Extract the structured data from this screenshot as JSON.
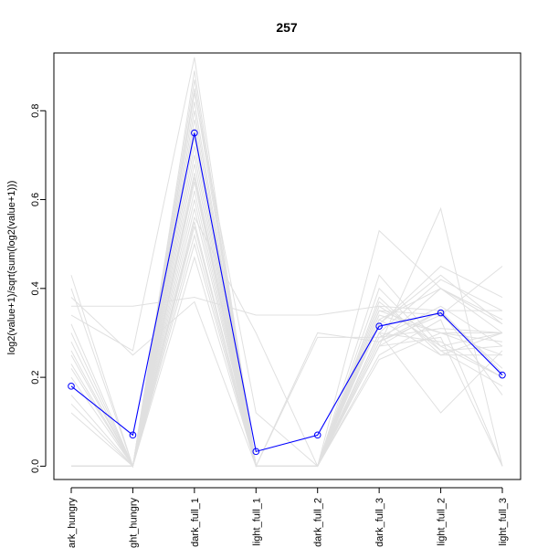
{
  "chart_data": {
    "type": "line",
    "title": "257",
    "xlabel": "",
    "ylabel": "log2(value+1)/sqrt(sum(log2(value+1)))",
    "categories": [
      "dark_hungry",
      "light_hungry",
      "dark_full_1",
      "light_full_1",
      "dark_full_2",
      "dark_full_3",
      "light_full_2",
      "light_full_3"
    ],
    "category_tick_labels": [
      "ark_hungry",
      "ght_hungry",
      "dark_full_1",
      "light_full_1",
      "dark_full_2",
      "dark_full_3",
      "light_full_2",
      "light_full_3"
    ],
    "ylim": [
      -0.03,
      0.93
    ],
    "yticks": [
      0.0,
      0.2,
      0.4,
      0.6,
      0.8
    ],
    "ytick_labels": [
      "0.0",
      "0.2",
      "0.4",
      "0.6",
      "0.8"
    ],
    "grid": false,
    "legend": "none",
    "series": [
      {
        "values": [
          0.18,
          0.07,
          0.75,
          0.033,
          0.07,
          0.315,
          0.345,
          0.205
        ],
        "color": "#0000ff",
        "markers": "open-circle",
        "highlight": true
      },
      {
        "values": [
          0.43,
          0.0,
          0.47,
          0.0,
          0.0,
          0.3,
          0.28,
          0.2
        ],
        "color": "#e0e0e0"
      },
      {
        "values": [
          0.4,
          0.0,
          0.55,
          0.0,
          0.0,
          0.27,
          0.35,
          0.16
        ],
        "color": "#e0e0e0"
      },
      {
        "values": [
          0.38,
          0.25,
          0.37,
          0.0,
          0.3,
          0.28,
          0.4,
          0.3
        ],
        "color": "#e0e0e0"
      },
      {
        "values": [
          0.36,
          0.36,
          0.38,
          0.34,
          0.34,
          0.36,
          0.35,
          0.35
        ],
        "color": "#e0e0e0"
      },
      {
        "values": [
          0.34,
          0.26,
          0.92,
          0.0,
          0.0,
          0.33,
          0.4,
          0.33
        ],
        "color": "#e0e0e0"
      },
      {
        "values": [
          0.32,
          0.0,
          0.89,
          0.0,
          0.0,
          0.3,
          0.42,
          0.35
        ],
        "color": "#e0e0e0"
      },
      {
        "values": [
          0.3,
          0.0,
          0.87,
          0.0,
          0.0,
          0.25,
          0.33,
          0.0
        ],
        "color": "#e0e0e0"
      },
      {
        "values": [
          0.28,
          0.0,
          0.85,
          0.0,
          0.0,
          0.32,
          0.45,
          0.38
        ],
        "color": "#e0e0e0"
      },
      {
        "values": [
          0.26,
          0.0,
          0.84,
          0.12,
          0.0,
          0.34,
          0.3,
          0.3
        ],
        "color": "#e0e0e0"
      },
      {
        "values": [
          0.25,
          0.0,
          0.82,
          0.0,
          0.0,
          0.27,
          0.58,
          0.0
        ],
        "color": "#e0e0e0"
      },
      {
        "values": [
          0.23,
          0.0,
          0.8,
          0.0,
          0.0,
          0.53,
          0.4,
          0.32
        ],
        "color": "#e0e0e0"
      },
      {
        "values": [
          0.22,
          0.0,
          0.78,
          0.0,
          0.0,
          0.35,
          0.3,
          0.28
        ],
        "color": "#e0e0e0"
      },
      {
        "values": [
          0.2,
          0.0,
          0.74,
          0.0,
          0.0,
          0.28,
          0.34,
          0.45
        ],
        "color": "#e0e0e0"
      },
      {
        "values": [
          0.16,
          0.0,
          0.72,
          0.0,
          0.0,
          0.24,
          0.3,
          0.25
        ],
        "color": "#e0e0e0"
      },
      {
        "values": [
          0.14,
          0.0,
          0.7,
          0.0,
          0.0,
          0.3,
          0.12,
          0.26
        ],
        "color": "#e0e0e0"
      },
      {
        "values": [
          0.12,
          0.0,
          0.68,
          0.0,
          0.0,
          0.27,
          0.29,
          0.0
        ],
        "color": "#e0e0e0"
      },
      {
        "values": [
          0.0,
          0.0,
          0.66,
          0.0,
          0.0,
          0.32,
          0.43,
          0.32
        ],
        "color": "#e0e0e0"
      },
      {
        "values": [
          0.0,
          0.0,
          0.64,
          0.0,
          0.0,
          0.29,
          0.31,
          0.3
        ],
        "color": "#e0e0e0"
      },
      {
        "values": [
          0.0,
          0.0,
          0.62,
          0.0,
          0.0,
          0.36,
          0.27,
          0.3
        ],
        "color": "#e0e0e0"
      },
      {
        "values": [
          0.0,
          0.0,
          0.6,
          0.0,
          0.0,
          0.4,
          0.26,
          0.27
        ],
        "color": "#e0e0e0"
      },
      {
        "values": [
          0.0,
          0.0,
          0.58,
          0.0,
          0.0,
          0.38,
          0.25,
          0.25
        ],
        "color": "#e0e0e0"
      },
      {
        "values": [
          0.0,
          0.0,
          0.54,
          0.0,
          0.0,
          0.43,
          0.27,
          0.2
        ],
        "color": "#e0e0e0"
      },
      {
        "values": [
          0.0,
          0.0,
          0.52,
          0.0,
          0.0,
          0.37,
          0.26,
          0.18
        ],
        "color": "#e0e0e0"
      },
      {
        "values": [
          0.0,
          0.0,
          0.5,
          0.0,
          0.0,
          0.35,
          0.34,
          0.22
        ],
        "color": "#e0e0e0"
      },
      {
        "values": [
          0.0,
          0.0,
          0.56,
          0.3,
          0.0,
          0.33,
          0.25,
          0.3
        ],
        "color": "#e0e0e0"
      },
      {
        "values": [
          0.0,
          0.0,
          0.65,
          0.0,
          0.29,
          0.29,
          0.36,
          0.27
        ],
        "color": "#e0e0e0"
      },
      {
        "values": [
          0.0,
          0.0,
          0.76,
          0.0,
          0.0,
          0.28,
          0.35,
          0.21
        ],
        "color": "#e0e0e0"
      }
    ]
  }
}
